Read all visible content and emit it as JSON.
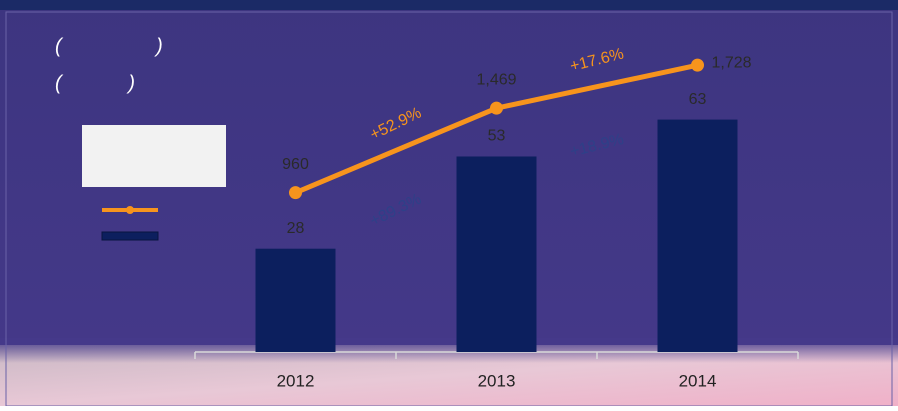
{
  "chart_data": {
    "type": "combo",
    "title_lines": [
      "(                 )",
      "(            )"
    ],
    "categories": [
      "2012",
      "2013",
      "2014"
    ],
    "series": [
      {
        "type": "bar",
        "color": "#0c1f5e",
        "values": [
          28,
          53,
          63
        ]
      },
      {
        "type": "line",
        "axis": "y2",
        "color": "#f7941d",
        "values": [
          960,
          1469,
          1728
        ],
        "value_labels": [
          "960",
          "1,469",
          "1,728"
        ]
      }
    ],
    "line_growth_labels": [
      "+52.9%",
      "+17.6%"
    ],
    "bar_growth_labels": [
      "+89.3%",
      "+18.9%"
    ],
    "ylim": [
      0,
      90
    ],
    "y2lim": [
      0,
      2000
    ]
  }
}
